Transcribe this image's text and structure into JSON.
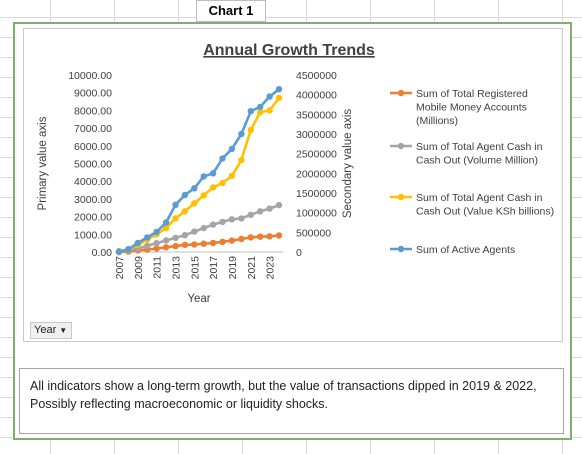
{
  "sheet": {
    "chart_label": "Chart 1"
  },
  "pivot": {
    "year_field_button": "Year"
  },
  "note": {
    "text": "All indicators show a long-term growth, but the value of transactions dipped in 2019 & 2022, Possibly reflecting macroeconomic or liquidity shocks."
  },
  "chart_data": {
    "type": "line",
    "title": "Annual Growth Trends",
    "xlabel": "Year",
    "ylabel": "Primary value axis",
    "y2label": "Secondary value axis",
    "ylim": [
      0,
      10000
    ],
    "y2lim": [
      0,
      4500000
    ],
    "y_ticks": [
      "0.00",
      "1000.00",
      "2000.00",
      "3000.00",
      "4000.00",
      "5000.00",
      "6000.00",
      "7000.00",
      "8000.00",
      "9000.00",
      "10000.00"
    ],
    "y2_ticks": [
      "0",
      "500000",
      "1000000",
      "1500000",
      "2000000",
      "2500000",
      "3000000",
      "3500000",
      "4000000",
      "4500000"
    ],
    "x": [
      2007,
      2008,
      2009,
      2010,
      2011,
      2012,
      2013,
      2014,
      2015,
      2016,
      2017,
      2018,
      2019,
      2020,
      2021,
      2022,
      2023,
      2024
    ],
    "x_tick_labels": [
      "2007",
      "2009",
      "2011",
      "2013",
      "2015",
      "2017",
      "2019",
      "2021",
      "2023"
    ],
    "legend_position": "right",
    "series": [
      {
        "name": "Sum of Total Registered Mobile Money Accounts (Millions)",
        "axis": "secondary",
        "color": "#ed7d31",
        "values": [
          0,
          10000,
          40000,
          60000,
          90000,
          120000,
          150000,
          180000,
          190000,
          210000,
          230000,
          260000,
          290000,
          330000,
          370000,
          390000,
          400000,
          420000
        ]
      },
      {
        "name": "Sum of Total Agent Cash in Cash Out (Volume Million)",
        "axis": "primary",
        "color": "#a5a5a5",
        "values": [
          50,
          100,
          200,
          350,
          500,
          650,
          800,
          950,
          1150,
          1350,
          1550,
          1700,
          1850,
          1900,
          2100,
          2300,
          2450,
          2650
        ]
      },
      {
        "name": "Sum of Total Agent Cash in Cash Out (Value KSh billions)",
        "axis": "primary",
        "color": "#ffc000",
        "values": [
          0,
          150,
          400,
          700,
          1000,
          1350,
          1900,
          2300,
          2750,
          3200,
          3650,
          3900,
          4300,
          5200,
          6900,
          7900,
          8000,
          8700
        ]
      },
      {
        "name": "Sum of Active Agents",
        "axis": "secondary",
        "color": "#5b9bd5",
        "values": [
          0,
          70000,
          230000,
          370000,
          510000,
          750000,
          1200000,
          1450000,
          1620000,
          1920000,
          2000000,
          2380000,
          2620000,
          3000000,
          3580000,
          3690000,
          3950000,
          4140000
        ]
      }
    ]
  }
}
